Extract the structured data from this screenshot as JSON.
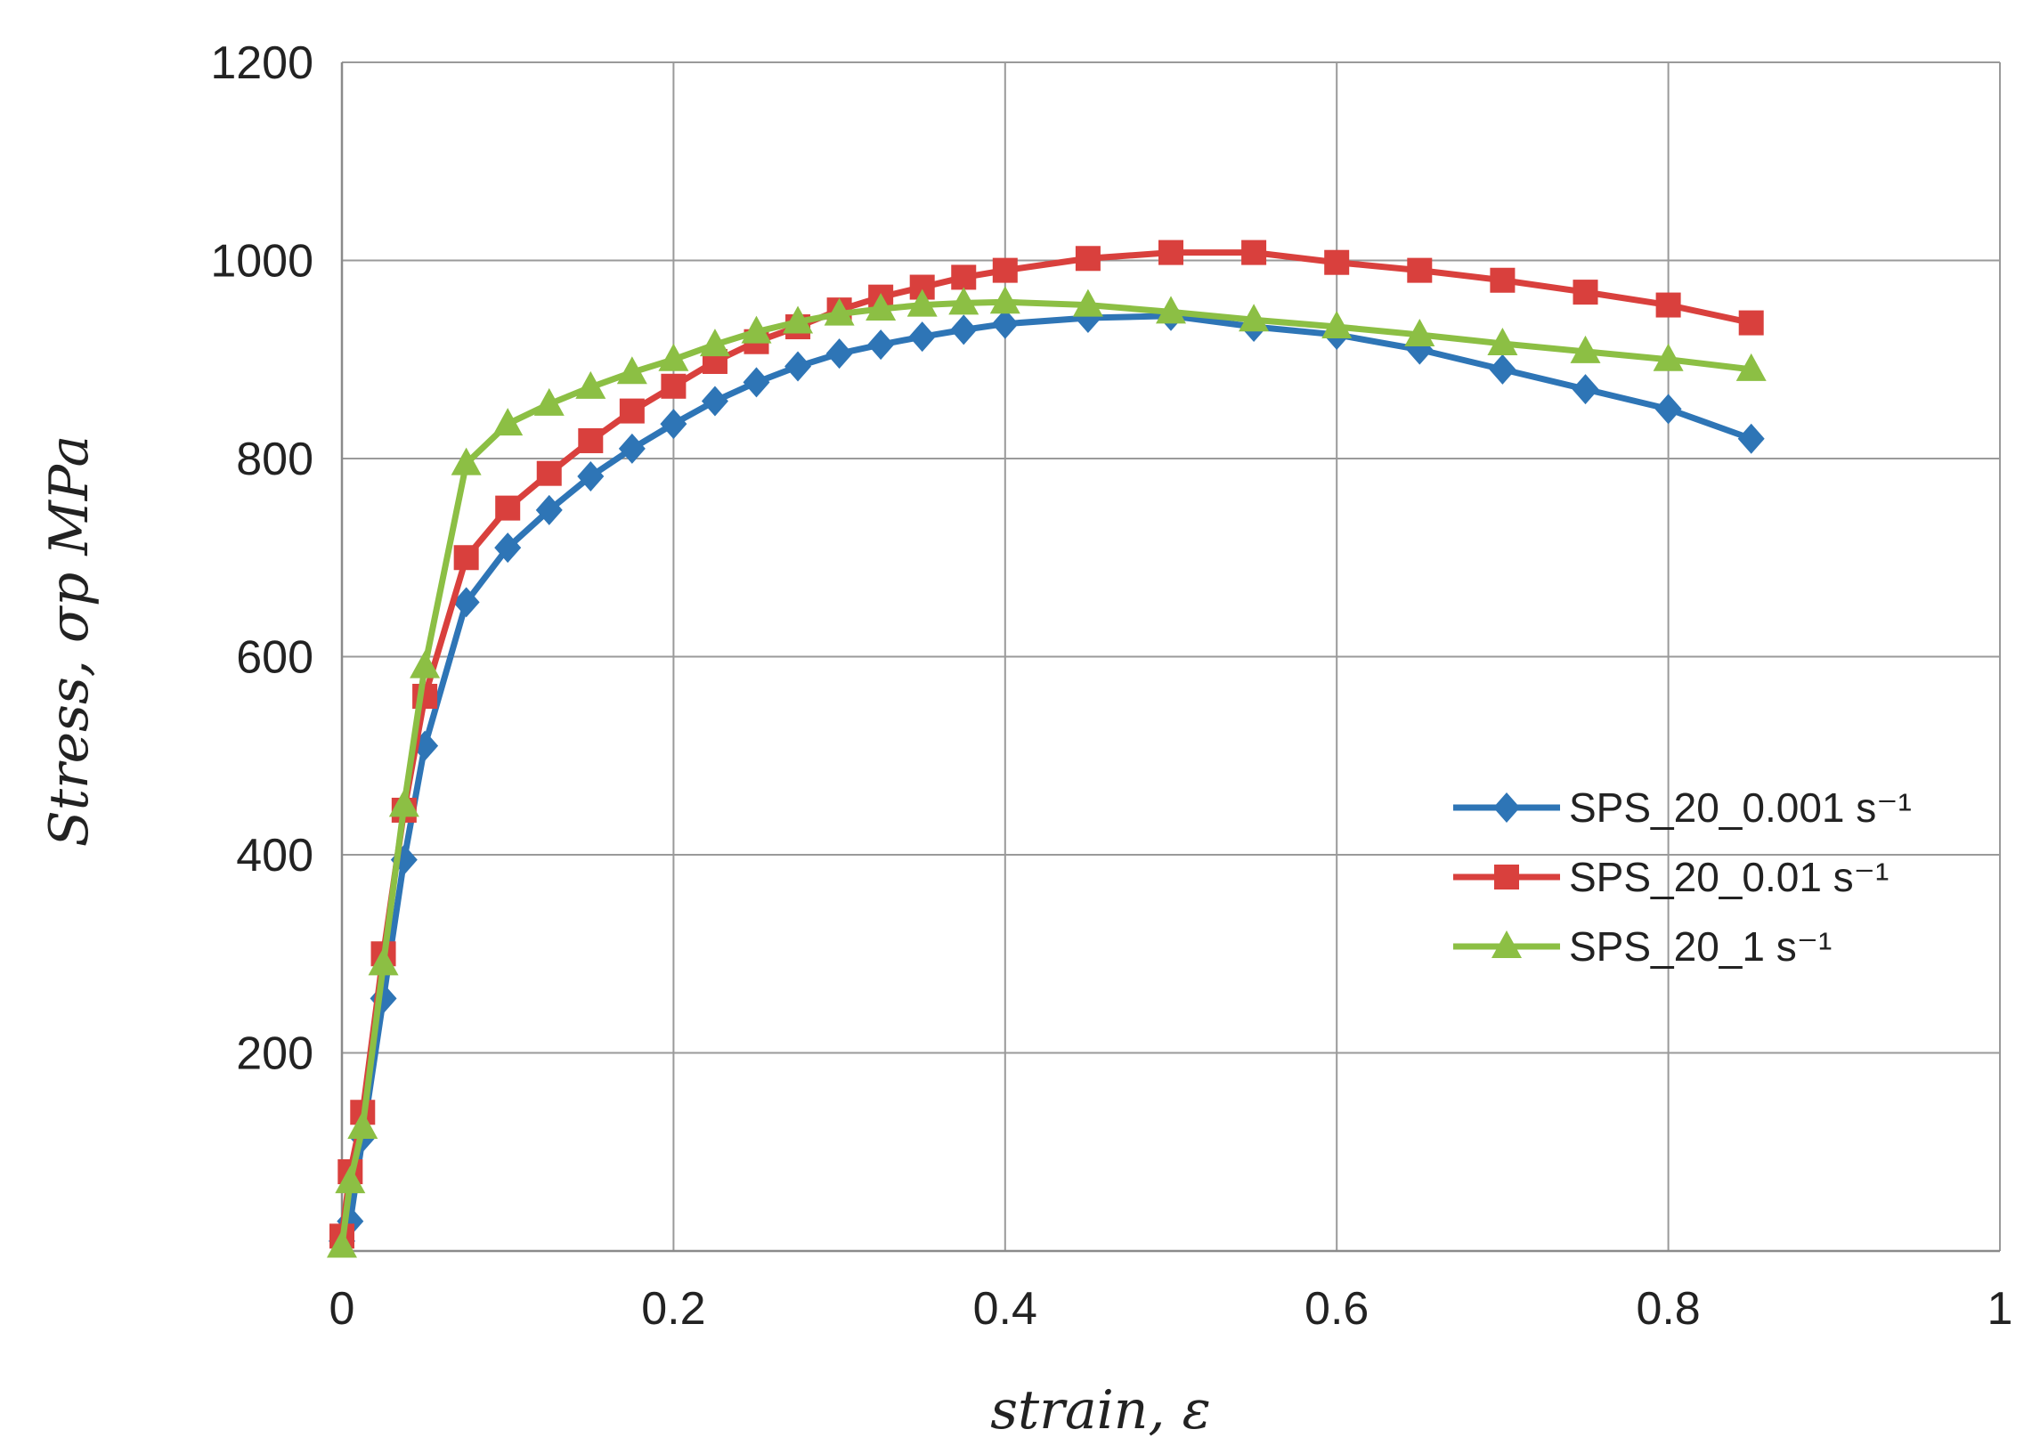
{
  "chart_data": {
    "type": "line",
    "title": "",
    "xlabel": "strain, ε",
    "ylabel": "Stress, σp MPa",
    "xlim": [
      0,
      1
    ],
    "ylim": [
      0,
      1200
    ],
    "x_ticks": [
      "0",
      "0.2",
      "0.4",
      "0.6",
      "0.8",
      "1"
    ],
    "y_ticks": [
      "200",
      "400",
      "600",
      "800",
      "1000",
      "1200"
    ],
    "grid": true,
    "legend_position": "right",
    "series": [
      {
        "name": "SPS_20_0.001 s⁻¹",
        "color": "#2E75B6",
        "marker": "diamond",
        "x": [
          0,
          0.005,
          0.0125,
          0.025,
          0.0375,
          0.05,
          0.075,
          0.1,
          0.125,
          0.15,
          0.175,
          0.2,
          0.225,
          0.25,
          0.275,
          0.3,
          0.325,
          0.35,
          0.375,
          0.4,
          0.45,
          0.5,
          0.55,
          0.6,
          0.65,
          0.7,
          0.75,
          0.8,
          0.85
        ],
        "y": [
          10,
          30,
          115,
          255,
          395,
          510,
          655,
          710,
          748,
          782,
          810,
          835,
          858,
          877,
          893,
          906,
          915,
          923,
          930,
          936,
          942,
          944,
          933,
          925,
          910,
          890,
          870,
          850,
          820
        ]
      },
      {
        "name": "SPS_20_0.01 s⁻¹",
        "color": "#D9403D",
        "marker": "square",
        "x": [
          0,
          0.005,
          0.0125,
          0.025,
          0.0375,
          0.05,
          0.075,
          0.1,
          0.125,
          0.15,
          0.175,
          0.2,
          0.225,
          0.25,
          0.275,
          0.3,
          0.325,
          0.35,
          0.375,
          0.4,
          0.45,
          0.5,
          0.55,
          0.6,
          0.65,
          0.7,
          0.75,
          0.8,
          0.85
        ],
        "y": [
          15,
          80,
          140,
          300,
          445,
          560,
          700,
          750,
          785,
          818,
          848,
          873,
          898,
          918,
          933,
          950,
          963,
          973,
          983,
          990,
          1002,
          1008,
          1008,
          998,
          990,
          980,
          968,
          955,
          937
        ]
      },
      {
        "name": "SPS_20_1 s⁻¹",
        "color": "#8CBF44",
        "marker": "triangle",
        "x": [
          0,
          0.005,
          0.0125,
          0.025,
          0.0375,
          0.05,
          0.075,
          0.1,
          0.125,
          0.15,
          0.175,
          0.2,
          0.225,
          0.25,
          0.275,
          0.3,
          0.325,
          0.35,
          0.375,
          0.4,
          0.45,
          0.5,
          0.55,
          0.6,
          0.65,
          0.7,
          0.75,
          0.8,
          0.85
        ],
        "y": [
          5,
          70,
          125,
          290,
          450,
          590,
          795,
          835,
          855,
          872,
          887,
          900,
          915,
          928,
          938,
          946,
          951,
          955,
          957,
          958,
          955,
          948,
          940,
          933,
          925,
          916,
          908,
          900,
          890
        ]
      }
    ]
  }
}
